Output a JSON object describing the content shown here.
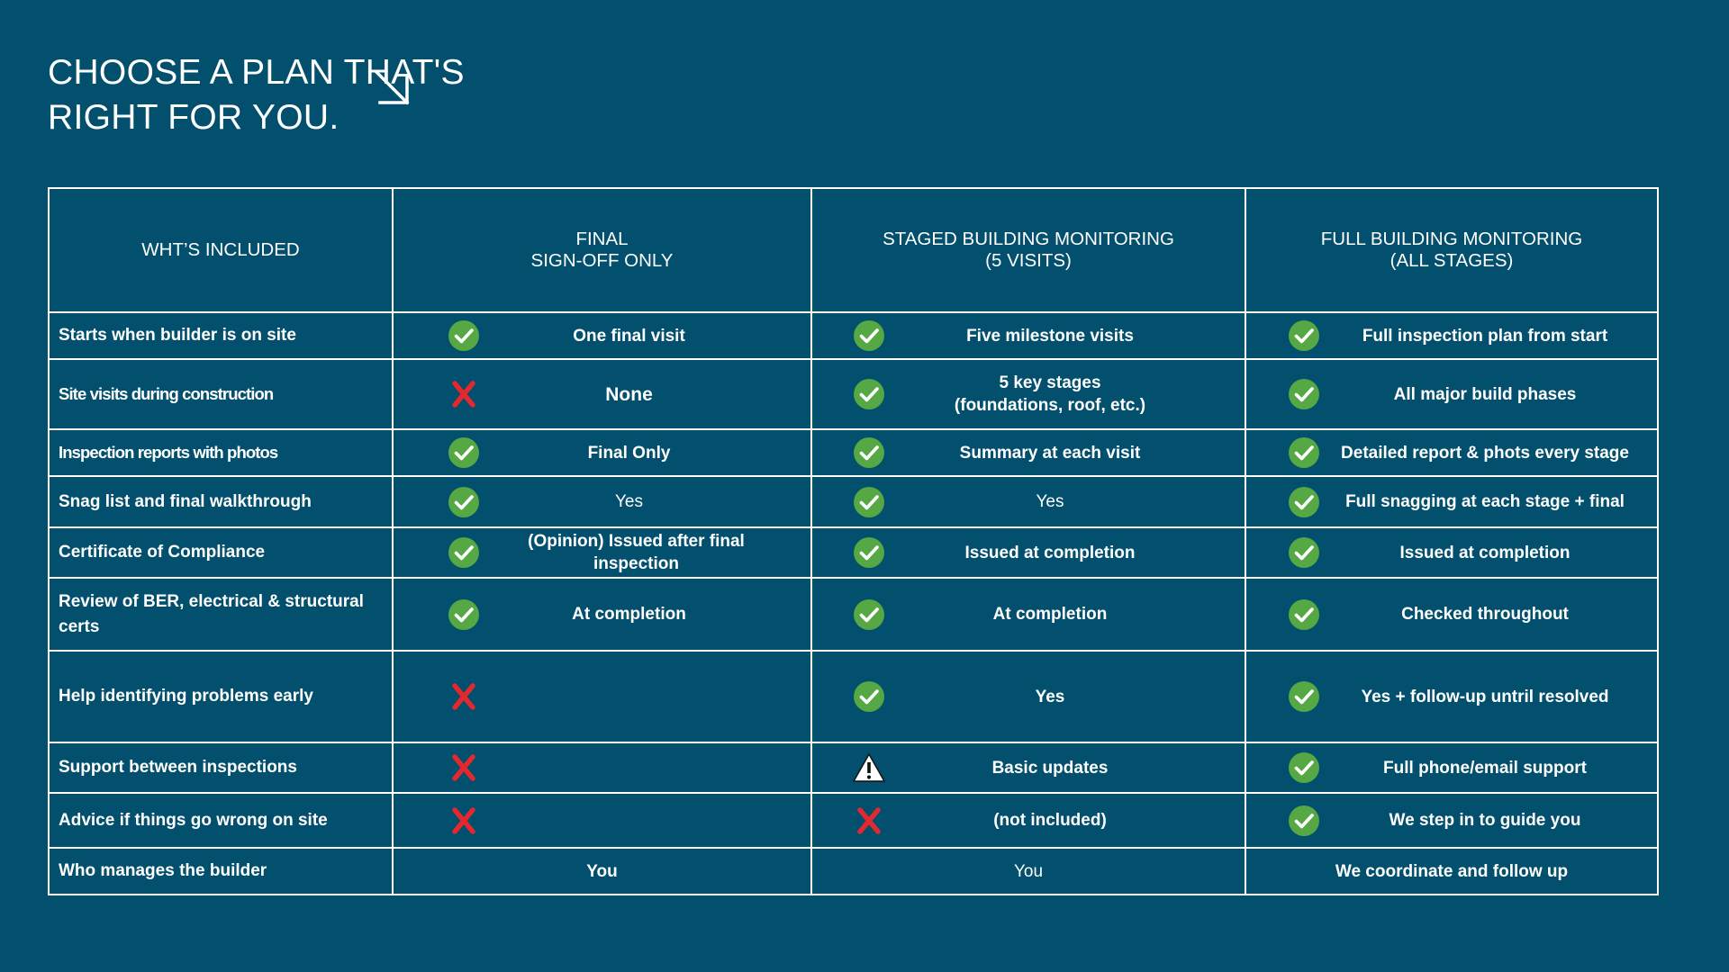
{
  "title": {
    "line1": "CHOOSE A PLAN THAT'S",
    "line2": "RIGHT FOR YOU."
  },
  "colors": {
    "background": "#024f6e",
    "check": "#55a843",
    "cross": "#e3282f",
    "warning": "#ffffff"
  },
  "table": {
    "headers": {
      "col0": [
        "WHT’S INCLUDED"
      ],
      "col1": [
        "FINAL",
        "SIGN-OFF ONLY"
      ],
      "col2": [
        "STAGED BUILDING MONITORING",
        "(5 VISITS)"
      ],
      "col3": [
        "FULL BUILDING MONITORING",
        "(ALL STAGES)"
      ]
    },
    "rows": [
      {
        "feature": "Starts when builder is on site",
        "c1": {
          "icon": "check-icon",
          "text": [
            "One final visit"
          ]
        },
        "c2": {
          "icon": "check-icon",
          "text": [
            "Five milestone visits"
          ]
        },
        "c3": {
          "icon": "check-icon",
          "text": [
            "Full inspection plan from start"
          ]
        }
      },
      {
        "feature": "Site visits during construction",
        "c1": {
          "icon": "cross-icon",
          "text": [
            "None"
          ]
        },
        "c2": {
          "icon": "check-icon",
          "text": [
            "5 key stages",
            "(foundations, roof, etc.)"
          ]
        },
        "c3": {
          "icon": "check-icon",
          "text": [
            "All major build phases"
          ]
        }
      },
      {
        "feature": "Inspection reports with photos",
        "c1": {
          "icon": "check-icon",
          "text": [
            "Final Only"
          ]
        },
        "c2": {
          "icon": "check-icon",
          "text": [
            "Summary at each visit"
          ]
        },
        "c3": {
          "icon": "check-icon",
          "text": [
            "Detailed report & phots every stage"
          ]
        }
      },
      {
        "feature": "Snag list and final walkthrough",
        "c1": {
          "icon": "check-icon",
          "text": [
            "Yes"
          ]
        },
        "c2": {
          "icon": "check-icon",
          "text": [
            "Yes"
          ]
        },
        "c3": {
          "icon": "check-icon",
          "text": [
            "Full snagging at each stage + final"
          ]
        }
      },
      {
        "feature": "Certificate of Compliance",
        "c1": {
          "icon": "check-icon",
          "text": [
            "(Opinion) Issued after final inspection"
          ]
        },
        "c2": {
          "icon": "check-icon",
          "text": [
            "Issued at completion"
          ]
        },
        "c3": {
          "icon": "check-icon",
          "text": [
            "Issued at completion"
          ]
        }
      },
      {
        "feature": "Review of BER, electrical & structural certs",
        "c1": {
          "icon": "check-icon",
          "text": [
            "At completion"
          ]
        },
        "c2": {
          "icon": "check-icon",
          "text": [
            "At completion"
          ]
        },
        "c3": {
          "icon": "check-icon",
          "text": [
            "Checked throughout"
          ]
        }
      },
      {
        "feature": "Help identifying problems early",
        "c1": {
          "icon": "cross-icon",
          "text": []
        },
        "c2": {
          "icon": "check-icon",
          "text": [
            "Yes"
          ]
        },
        "c3": {
          "icon": "check-icon",
          "text": [
            "Yes + follow-up untril resolved"
          ]
        }
      },
      {
        "feature": "Support between inspections",
        "c1": {
          "icon": "cross-icon",
          "text": []
        },
        "c2": {
          "icon": "warning-icon",
          "text": [
            "Basic updates"
          ]
        },
        "c3": {
          "icon": "check-icon",
          "text": [
            "Full phone/email support"
          ]
        }
      },
      {
        "feature": "Advice if things go wrong on site",
        "c1": {
          "icon": "cross-icon",
          "text": []
        },
        "c2": {
          "icon": "cross-icon",
          "text": [
            "(not included)"
          ]
        },
        "c3": {
          "icon": "check-icon",
          "text": [
            "We step in to guide you"
          ]
        }
      },
      {
        "feature": "Who manages the builder",
        "c1": {
          "icon": "",
          "text": [
            "You"
          ]
        },
        "c2": {
          "icon": "",
          "text": [
            "You"
          ]
        },
        "c3": {
          "icon": "",
          "text": [
            "We coordinate and follow up"
          ]
        }
      }
    ]
  }
}
